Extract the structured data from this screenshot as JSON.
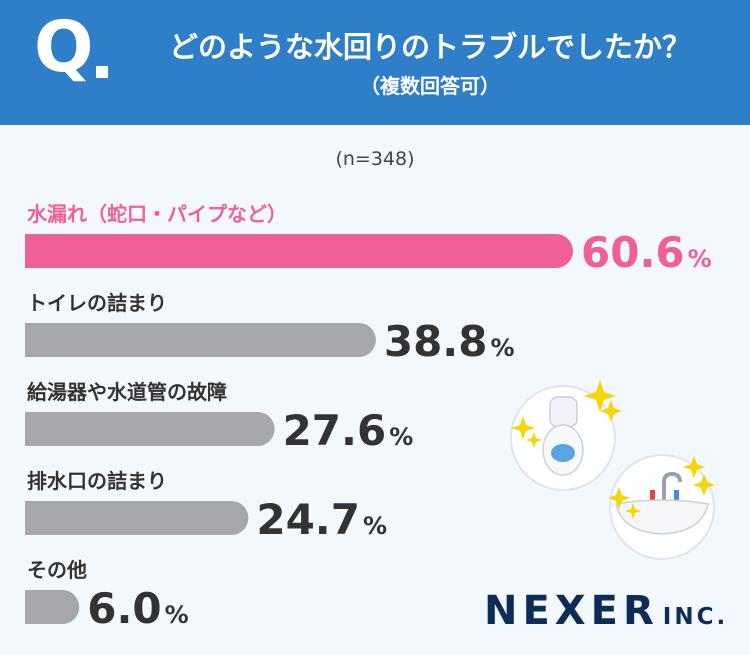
{
  "header": {
    "q_letter": "Q",
    "title": "どのような水回りのトラブルでしたか？",
    "subtitle": "（複数回答可）"
  },
  "sample_size": "(n=348)",
  "brand": {
    "name": "NEXER",
    "suffix": "INC."
  },
  "colors": {
    "header_bg": "#2f7fc8",
    "highlight": "#ef5f98",
    "bar_default": "#a6a6ab",
    "value_text": "#333333",
    "brand": "#0d2d57",
    "sparkle": "#f5d60a"
  },
  "illustrations": [
    "toilet-icon",
    "sink-icon",
    "sparkle-icon"
  ],
  "chart_data": {
    "type": "bar",
    "orientation": "horizontal",
    "unit": "%",
    "categories": [
      "水漏れ（蛇口・パイプなど）",
      "トイレの詰まり",
      "給湯器や水道管の故障",
      "排水口の詰まり",
      "その他"
    ],
    "values": [
      60.6,
      38.8,
      27.6,
      24.7,
      6.0
    ],
    "value_labels": [
      "60.6",
      "38.8",
      "27.6",
      "24.7",
      "6.0"
    ],
    "highlight_index": 0,
    "xlim": [
      0,
      60.6
    ]
  }
}
